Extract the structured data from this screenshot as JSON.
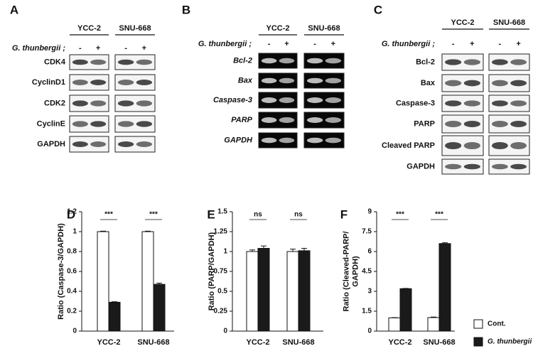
{
  "blots": [
    {
      "letter": "A",
      "cell_lines": [
        "YCC-2",
        "SNU-668"
      ],
      "treatment_label": "G. thunbergii ;",
      "signs": [
        "-",
        "+"
      ],
      "rows": [
        "CDK4",
        "CyclinD1",
        "CDK2",
        "CyclinE",
        "GAPDH"
      ]
    },
    {
      "letter": "B",
      "cell_lines": [
        "YCC-2",
        "SNU-668"
      ],
      "treatment_label": "G. thunbergii ;",
      "signs": [
        "-",
        "+"
      ],
      "rows": [
        "Bcl-2",
        "Bax",
        "Caspase-3",
        "PARP",
        "GAPDH"
      ]
    },
    {
      "letter": "C",
      "cell_lines": [
        "YCC-2",
        "SNU-668"
      ],
      "treatment_label": "G. thunbergii ;",
      "signs": [
        "-",
        "+"
      ],
      "rows": [
        "Bcl-2",
        "Bax",
        "Caspase-3",
        "PARP",
        "Cleaved PARP",
        "GAPDH"
      ]
    }
  ],
  "chart_data": [
    {
      "type": "bar",
      "letter": "D",
      "y_label": [
        "Ratio (Caspase-3/GAPDH)"
      ],
      "categories": [
        "YCC-2",
        "SNU-668"
      ],
      "series": [
        {
          "color": "#ffffff",
          "values": [
            1,
            1
          ],
          "errors": [
            0.005,
            0.005
          ]
        },
        {
          "color": "#1a1a1a",
          "values": [
            0.29,
            0.47
          ],
          "errors": [
            0.005,
            0.012
          ]
        }
      ],
      "annotations": [
        "***",
        "***"
      ],
      "ylim": [
        0,
        1.2
      ],
      "yticks": [
        0,
        0.2,
        0.4,
        0.6,
        0.8,
        1,
        1.2
      ]
    },
    {
      "type": "bar",
      "letter": "E",
      "y_label": [
        "Ratio (PARP/GAPDH)"
      ],
      "categories": [
        "YCC-2",
        "SNU-668"
      ],
      "series": [
        {
          "color": "#ffffff",
          "values": [
            1,
            1
          ],
          "errors": [
            0.02,
            0.03
          ]
        },
        {
          "color": "#1a1a1a",
          "values": [
            1.04,
            1.01
          ],
          "errors": [
            0.03,
            0.03
          ]
        }
      ],
      "annotations": [
        "ns",
        "ns"
      ],
      "ylim": [
        0,
        1.5
      ],
      "yticks": [
        0,
        0.25,
        0.5,
        0.75,
        1,
        1.25,
        1.5
      ]
    },
    {
      "type": "bar",
      "letter": "F",
      "y_label": [
        "Ratio (Cleaved-PARP/",
        "GAPDH)"
      ],
      "categories": [
        "YCC-2",
        "SNU-668"
      ],
      "series": [
        {
          "name": "Cont.",
          "color": "#ffffff",
          "values": [
            1,
            1.02
          ],
          "errors": [
            0.02,
            0.04
          ]
        },
        {
          "name": "G. thunbergii",
          "color": "#1a1a1a",
          "values": [
            3.2,
            6.6
          ],
          "errors": [
            0.02,
            0.06
          ]
        }
      ],
      "annotations": [
        "***",
        "***"
      ],
      "legend": "right",
      "ylim": [
        0,
        9
      ],
      "yticks": [
        0,
        1.5,
        3,
        4.5,
        6,
        7.5,
        9
      ]
    }
  ]
}
